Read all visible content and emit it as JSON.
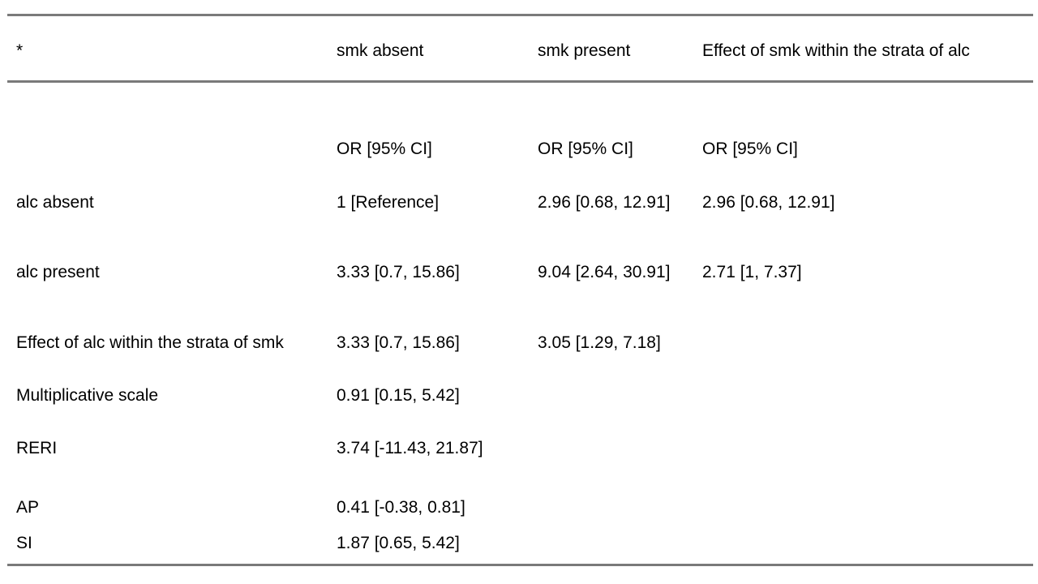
{
  "table": {
    "colors": {
      "rule": "#7a7a7a",
      "text": "#000000",
      "background": "#ffffff"
    },
    "header": {
      "corner": "*",
      "col2": "smk absent",
      "col3": "smk present",
      "col4": "Effect of smk within the strata of alc"
    },
    "subheader": {
      "label": "",
      "cells": [
        "OR [95% CI]",
        "OR [95% CI]",
        "OR [95% CI]"
      ]
    },
    "rows": [
      {
        "label": "alc absent",
        "cells": [
          "1 [Reference]",
          "2.96 [0.68, 12.91]",
          "2.96 [0.68, 12.91]"
        ]
      },
      {
        "label": "alc present",
        "cells": [
          "3.33 [0.7, 15.86]",
          "9.04 [2.64, 30.91]",
          "2.71 [1, 7.37]"
        ]
      },
      {
        "label": "Effect of alc within the strata of smk",
        "cells": [
          "3.33 [0.7, 15.86]",
          "3.05 [1.29, 7.18]",
          ""
        ]
      },
      {
        "label": "Multiplicative scale",
        "cells": [
          "0.91 [0.15, 5.42]",
          "",
          ""
        ]
      },
      {
        "label": "RERI",
        "cells": [
          "3.74 [-11.43, 21.87]",
          "",
          ""
        ]
      },
      {
        "label": "AP",
        "cells": [
          "0.41 [-0.38, 0.81]",
          "",
          ""
        ]
      },
      {
        "label": "SI",
        "cells": [
          "1.87 [0.65, 5.42]",
          "",
          ""
        ]
      }
    ]
  },
  "chart_data": {
    "type": "table",
    "title": "",
    "columns": [
      "*",
      "smk absent",
      "smk present",
      "Effect of smk within the strata of alc"
    ],
    "rows": [
      [
        "",
        "OR [95% CI]",
        "OR [95% CI]",
        "OR [95% CI]"
      ],
      [
        "alc absent",
        "1 [Reference]",
        "2.96 [0.68, 12.91]",
        "2.96 [0.68, 12.91]"
      ],
      [
        "alc present",
        "3.33 [0.7, 15.86]",
        "9.04 [2.64, 30.91]",
        "2.71 [1, 7.37]"
      ],
      [
        "Effect of alc within the strata of smk",
        "3.33 [0.7, 15.86]",
        "3.05 [1.29, 7.18]",
        ""
      ],
      [
        "Multiplicative scale",
        "0.91 [0.15, 5.42]",
        "",
        ""
      ],
      [
        "RERI",
        "3.74 [-11.43, 21.87]",
        "",
        ""
      ],
      [
        "AP",
        "0.41 [-0.38, 0.81]",
        "",
        ""
      ],
      [
        "SI",
        "1.87 [0.65, 5.42]",
        "",
        ""
      ]
    ]
  }
}
